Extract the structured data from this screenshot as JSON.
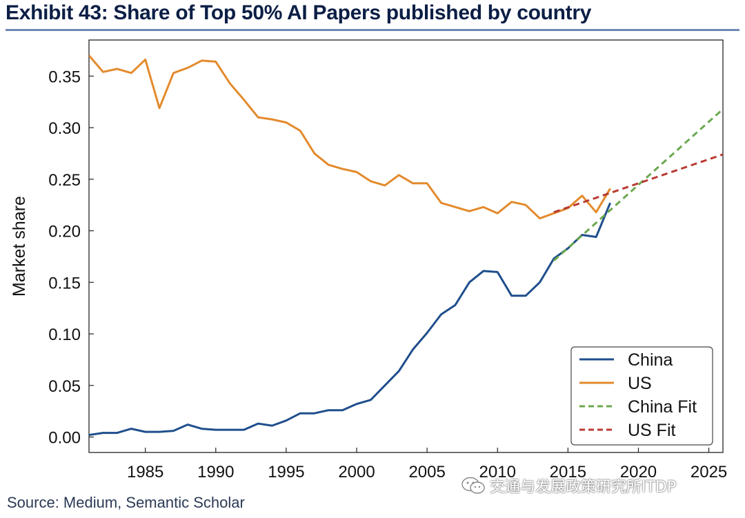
{
  "header": {
    "title": "Exhibit 43: Share of Top 50% AI Papers published by country"
  },
  "footer": {
    "source": "Source: Medium, Semantic Scholar",
    "watermark": "交通与发展政策研究所ITDP",
    "watermark_icon": "wechat-icon"
  },
  "chart_data": {
    "type": "line",
    "title": "",
    "xlabel": "",
    "ylabel": "Market share",
    "xlim": [
      1981,
      2026
    ],
    "ylim": [
      -0.015,
      0.385
    ],
    "xticks": [
      1985,
      1990,
      1995,
      2000,
      2005,
      2010,
      2015,
      2020,
      2025
    ],
    "yticks": [
      0.0,
      0.05,
      0.1,
      0.15,
      0.2,
      0.25,
      0.3,
      0.35
    ],
    "ytick_labels": [
      "0.00",
      "0.05",
      "0.10",
      "0.15",
      "0.20",
      "0.25",
      "0.30",
      "0.35"
    ],
    "grid": false,
    "legend": "bottom-right",
    "series": [
      {
        "name": "China",
        "color": "#1f4e8c",
        "style": "solid",
        "x": [
          1981,
          1982,
          1983,
          1984,
          1985,
          1986,
          1987,
          1988,
          1989,
          1990,
          1991,
          1992,
          1993,
          1994,
          1995,
          1996,
          1997,
          1998,
          1999,
          2000,
          2001,
          2002,
          2003,
          2004,
          2005,
          2006,
          2007,
          2008,
          2009,
          2010,
          2011,
          2012,
          2013,
          2014,
          2015,
          2016,
          2017,
          2018
        ],
        "y": [
          0.002,
          0.004,
          0.004,
          0.008,
          0.005,
          0.005,
          0.006,
          0.012,
          0.008,
          0.007,
          0.007,
          0.007,
          0.013,
          0.011,
          0.016,
          0.023,
          0.023,
          0.026,
          0.026,
          0.032,
          0.036,
          0.05,
          0.064,
          0.085,
          0.101,
          0.119,
          0.128,
          0.15,
          0.161,
          0.16,
          0.137,
          0.137,
          0.15,
          0.173,
          0.183,
          0.196,
          0.194,
          0.227
        ]
      },
      {
        "name": "US",
        "color": "#e38a2c",
        "style": "solid",
        "x": [
          1981,
          1982,
          1983,
          1984,
          1985,
          1986,
          1987,
          1988,
          1989,
          1990,
          1991,
          1992,
          1993,
          1994,
          1995,
          1996,
          1997,
          1998,
          1999,
          2000,
          2001,
          2002,
          2003,
          2004,
          2005,
          2006,
          2007,
          2008,
          2009,
          2010,
          2011,
          2012,
          2013,
          2014,
          2015,
          2016,
          2017,
          2018
        ],
        "y": [
          0.37,
          0.354,
          0.357,
          0.353,
          0.366,
          0.319,
          0.353,
          0.358,
          0.365,
          0.364,
          0.343,
          0.327,
          0.31,
          0.308,
          0.305,
          0.297,
          0.275,
          0.264,
          0.26,
          0.257,
          0.248,
          0.244,
          0.254,
          0.246,
          0.246,
          0.227,
          0.223,
          0.219,
          0.223,
          0.217,
          0.228,
          0.225,
          0.212,
          0.217,
          0.222,
          0.234,
          0.218,
          0.241
        ]
      },
      {
        "name": "China Fit",
        "color": "#6aa84f",
        "style": "dashed",
        "x": [
          2014,
          2026
        ],
        "y": [
          0.171,
          0.318
        ]
      },
      {
        "name": "US Fit",
        "color": "#b83a32",
        "style": "dashed",
        "x": [
          2014,
          2026
        ],
        "y": [
          0.218,
          0.274
        ]
      }
    ]
  }
}
